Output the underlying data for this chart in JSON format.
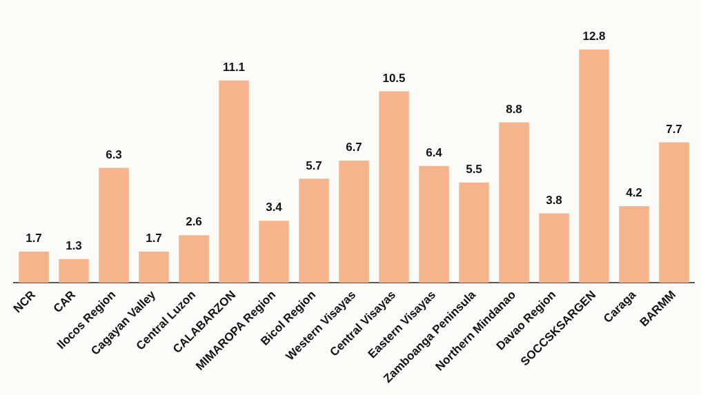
{
  "chart_data": {
    "type": "bar",
    "categories": [
      "NCR",
      "CAR",
      "Ilocos Region",
      "Cagayan Valley",
      "Central Luzon",
      "CALABARZON",
      "MIMAROPA Region",
      "Bicol Region",
      "Western Visayas",
      "Central Visayas",
      "Eastern Visayas",
      "Zamboanga Peninsula",
      "Northern Mindanao",
      "Davao Region",
      "SOCCSKSARGEN",
      "Caraga",
      "BARMM"
    ],
    "values": [
      1.7,
      1.3,
      6.3,
      1.7,
      2.6,
      11.1,
      3.4,
      5.7,
      6.7,
      10.5,
      6.4,
      5.5,
      8.8,
      3.8,
      12.8,
      4.2,
      7.7
    ],
    "color": "#f5b48c",
    "data_labels": true,
    "grid": false,
    "legend": false
  }
}
